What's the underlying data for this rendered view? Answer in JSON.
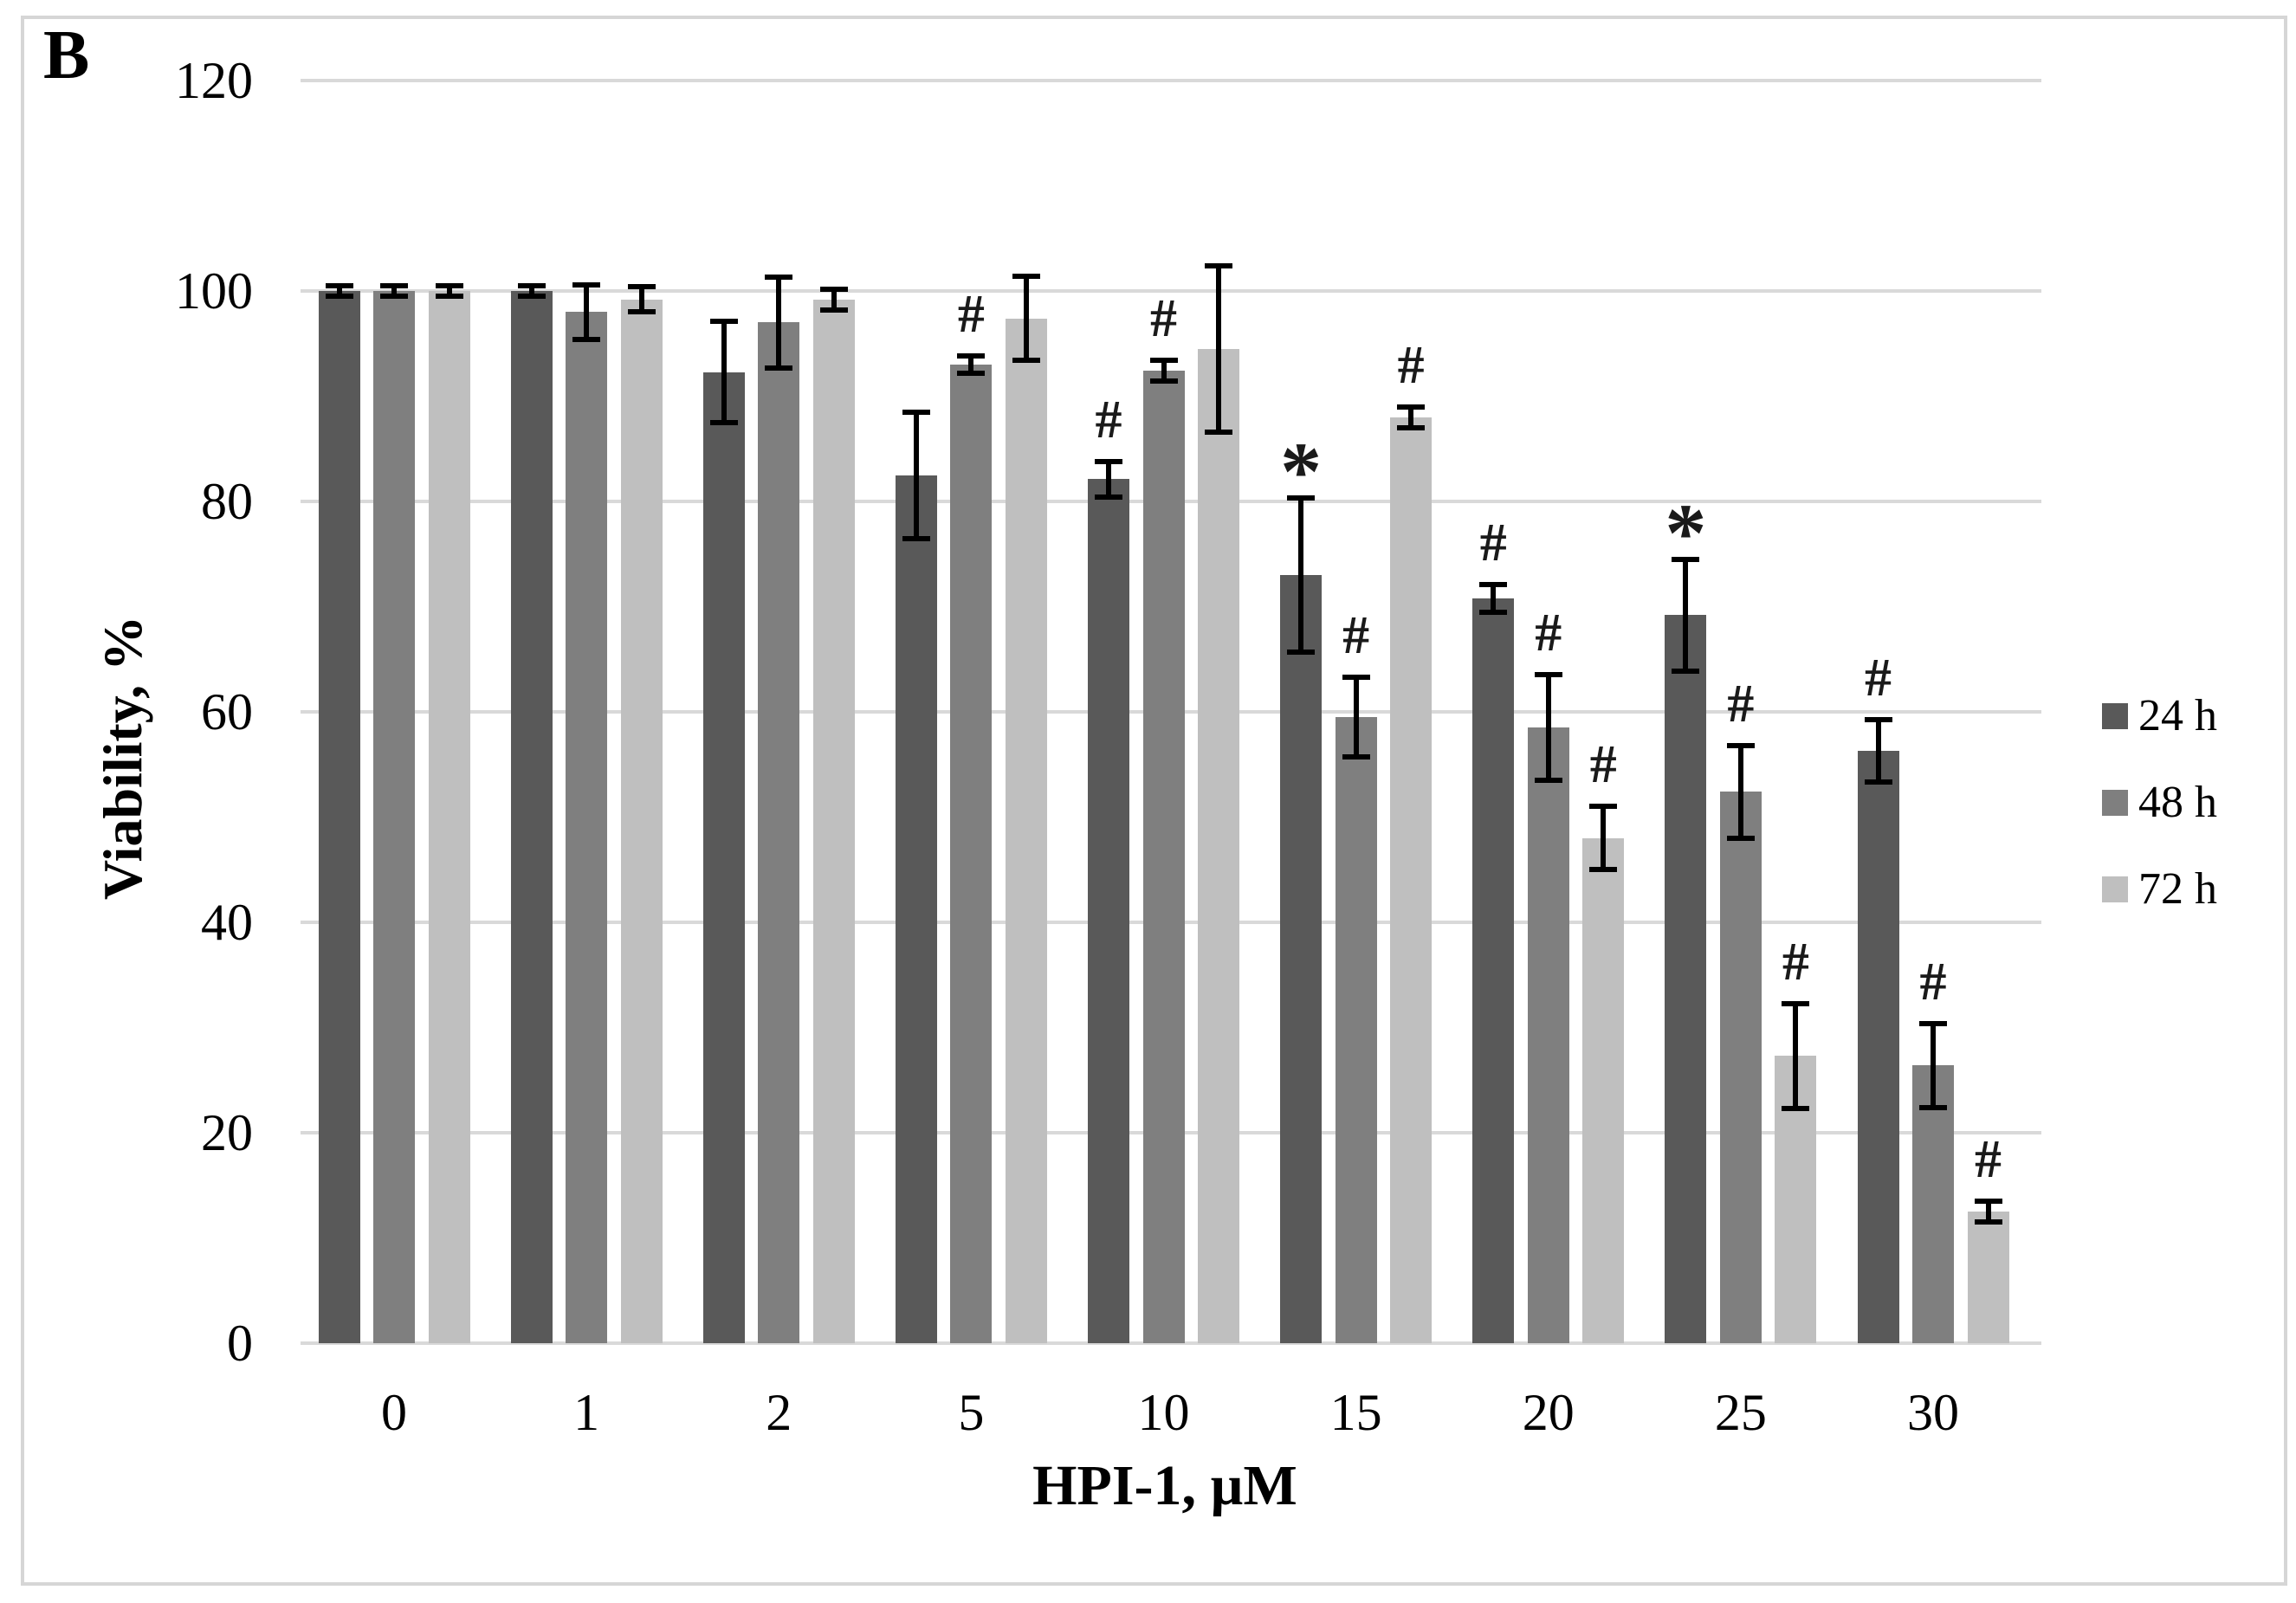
{
  "panel_label": "B",
  "figure": {
    "background": "#ffffff",
    "border_color": "#d6d6d6"
  },
  "chart_data": {
    "type": "bar",
    "title": "",
    "xlabel": "HPI-1, µM",
    "ylabel": "Viability, %",
    "ylim": [
      0,
      120
    ],
    "yticks": [
      0,
      20,
      40,
      60,
      80,
      100,
      120
    ],
    "grid": true,
    "gridline_color": "#d9d9d9",
    "error_bar_color": "#000000",
    "legend_position": "right",
    "categories": [
      "0",
      "1",
      "2",
      "5",
      "10",
      "15",
      "20",
      "25",
      "30"
    ],
    "series": [
      {
        "name": "24 h",
        "color": "#595959",
        "values": [
          100,
          100,
          92.3,
          82.5,
          82.1,
          73,
          70.8,
          69.2,
          56.3
        ],
        "errors": [
          0.5,
          0.5,
          4.8,
          6.0,
          1.7,
          7.3,
          1.3,
          5.3,
          3.0
        ],
        "annotations": [
          "",
          "",
          "",
          "",
          "#",
          "*",
          "#",
          "*",
          "#"
        ]
      },
      {
        "name": "48 h",
        "color": "#7f7f7f",
        "values": [
          100,
          98,
          97,
          93,
          92.4,
          59.5,
          58.5,
          52.4,
          26.4
        ],
        "errors": [
          0.5,
          2.6,
          4.3,
          0.8,
          1.0,
          3.8,
          5.0,
          4.4,
          4.0
        ],
        "annotations": [
          "",
          "",
          "",
          "#",
          "#",
          "#",
          "#",
          "#",
          "#"
        ]
      },
      {
        "name": "72 h",
        "color": "#bfbfbf",
        "values": [
          100,
          99.2,
          99.2,
          97.4,
          94.5,
          88,
          48,
          27.3,
          12.5
        ],
        "errors": [
          0.5,
          1.2,
          1.0,
          4.0,
          7.9,
          1.0,
          3.0,
          5.0,
          1.0
        ],
        "annotations": [
          "",
          "",
          "",
          "",
          "",
          "#",
          "#",
          "#",
          "#"
        ]
      }
    ]
  }
}
